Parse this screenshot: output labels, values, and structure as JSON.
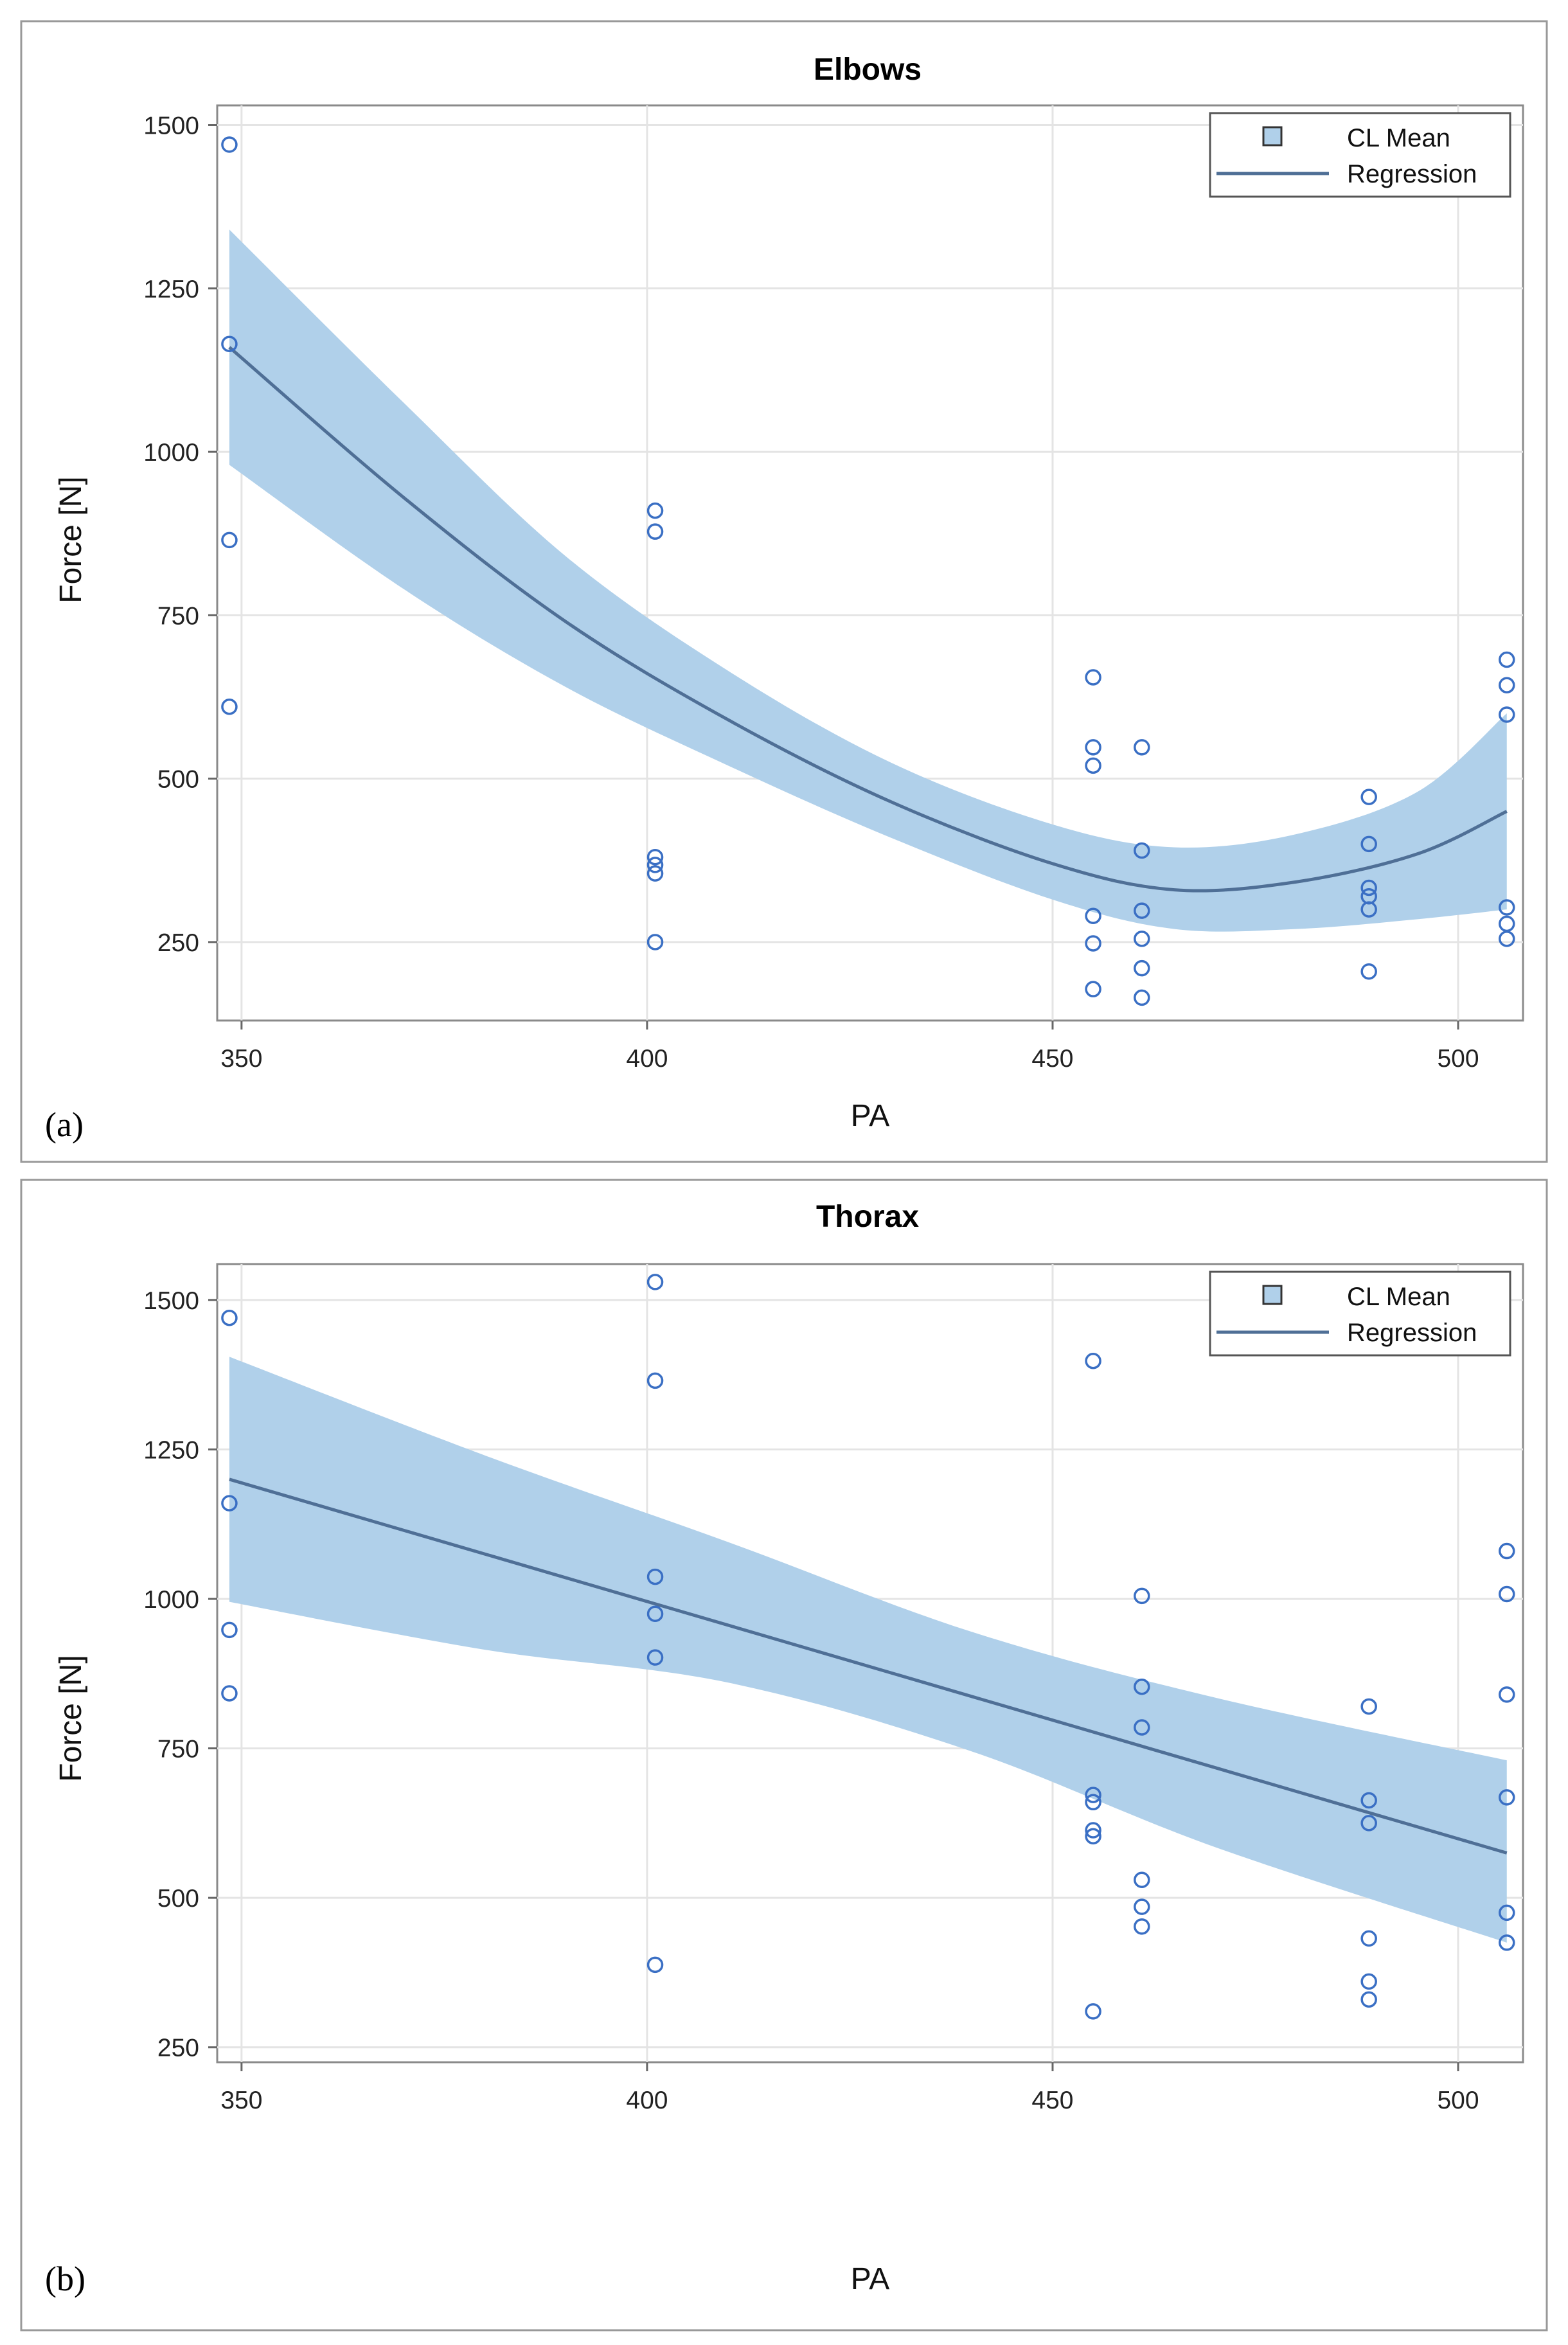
{
  "chart_data": [
    {
      "type": "scatter",
      "panel_label": "(a)",
      "title": "Elbows",
      "xlabel": "PA",
      "ylabel": "Force [N]",
      "xlim": [
        347,
        508
      ],
      "ylim": [
        130,
        1530
      ],
      "x_ticks": [
        350,
        400,
        450,
        500
      ],
      "y_ticks": [
        250,
        500,
        750,
        1000,
        1250,
        1500
      ],
      "grid": true,
      "legend": {
        "position": "top-right",
        "items": [
          "CL Mean",
          "Regression"
        ]
      },
      "points": [
        [
          348.5,
          1470
        ],
        [
          348.5,
          1165
        ],
        [
          348.5,
          865
        ],
        [
          348.5,
          610
        ],
        [
          401,
          910
        ],
        [
          401,
          878
        ],
        [
          401,
          380
        ],
        [
          401,
          368
        ],
        [
          401,
          355
        ],
        [
          401,
          250
        ],
        [
          455,
          655
        ],
        [
          455,
          548
        ],
        [
          455,
          520
        ],
        [
          455,
          290
        ],
        [
          455,
          248
        ],
        [
          455,
          178
        ],
        [
          461,
          548
        ],
        [
          461,
          390
        ],
        [
          461,
          298
        ],
        [
          461,
          255
        ],
        [
          461,
          210
        ],
        [
          461,
          165
        ],
        [
          489,
          472
        ],
        [
          489,
          400
        ],
        [
          489,
          333
        ],
        [
          489,
          320
        ],
        [
          489,
          300
        ],
        [
          489,
          205
        ],
        [
          506,
          682
        ],
        [
          506,
          643
        ],
        [
          506,
          598
        ],
        [
          506,
          303
        ],
        [
          506,
          278
        ],
        [
          506,
          255
        ]
      ],
      "regression": {
        "x": [
          348.5,
          370,
          390,
          410,
          430,
          450,
          465,
          480,
          495,
          506
        ],
        "y": [
          1160,
          930,
          740,
          590,
          465,
          370,
          330,
          342,
          385,
          450
        ]
      },
      "cl_mean": {
        "x": [
          348.5,
          370,
          390,
          410,
          430,
          450,
          465,
          480,
          495,
          506
        ],
        "lower": [
          980,
          790,
          640,
          520,
          410,
          315,
          270,
          270,
          285,
          300
        ],
        "upper": [
          1340,
          1075,
          840,
          665,
          525,
          430,
          395,
          415,
          480,
          600
        ]
      }
    },
    {
      "type": "scatter",
      "panel_label": "(b)",
      "title": "Thorax",
      "xlabel": "PA",
      "ylabel": "Force [N]",
      "xlim": [
        347,
        508
      ],
      "ylim": [
        225,
        1560
      ],
      "x_ticks": [
        350,
        400,
        450,
        500
      ],
      "y_ticks": [
        250,
        500,
        750,
        1000,
        1250,
        1500
      ],
      "grid": true,
      "legend": {
        "position": "top-right",
        "items": [
          "CL Mean",
          "Regression"
        ]
      },
      "points": [
        [
          348.5,
          1470
        ],
        [
          348.5,
          1160
        ],
        [
          348.5,
          948
        ],
        [
          348.5,
          842
        ],
        [
          401,
          1530
        ],
        [
          401,
          1365
        ],
        [
          401,
          1037
        ],
        [
          401,
          975
        ],
        [
          401,
          902
        ],
        [
          401,
          388
        ],
        [
          455,
          1398
        ],
        [
          455,
          672
        ],
        [
          455,
          660
        ],
        [
          455,
          613
        ],
        [
          455,
          603
        ],
        [
          455,
          310
        ],
        [
          461,
          1005
        ],
        [
          461,
          853
        ],
        [
          461,
          785
        ],
        [
          461,
          530
        ],
        [
          461,
          485
        ],
        [
          461,
          452
        ],
        [
          489,
          820
        ],
        [
          489,
          663
        ],
        [
          489,
          625
        ],
        [
          489,
          432
        ],
        [
          489,
          360
        ],
        [
          489,
          330
        ],
        [
          506,
          1080
        ],
        [
          506,
          1008
        ],
        [
          506,
          840
        ],
        [
          506,
          668
        ],
        [
          506,
          475
        ],
        [
          506,
          425
        ]
      ],
      "regression": {
        "x": [
          348.5,
          506
        ],
        "y": [
          1200,
          575
        ]
      },
      "cl_mean": {
        "x": [
          348.5,
          380,
          410,
          440,
          470,
          506
        ],
        "lower": [
          995,
          915,
          860,
          745,
          585,
          425
        ],
        "upper": [
          1405,
          1240,
          1095,
          945,
          835,
          730
        ]
      }
    }
  ],
  "colors": {
    "band": "#b0d0ea",
    "regression_line": "#4f6f96",
    "marker": "#3a6fc4",
    "grid": "#e4e4e4",
    "frame": "#999999"
  }
}
